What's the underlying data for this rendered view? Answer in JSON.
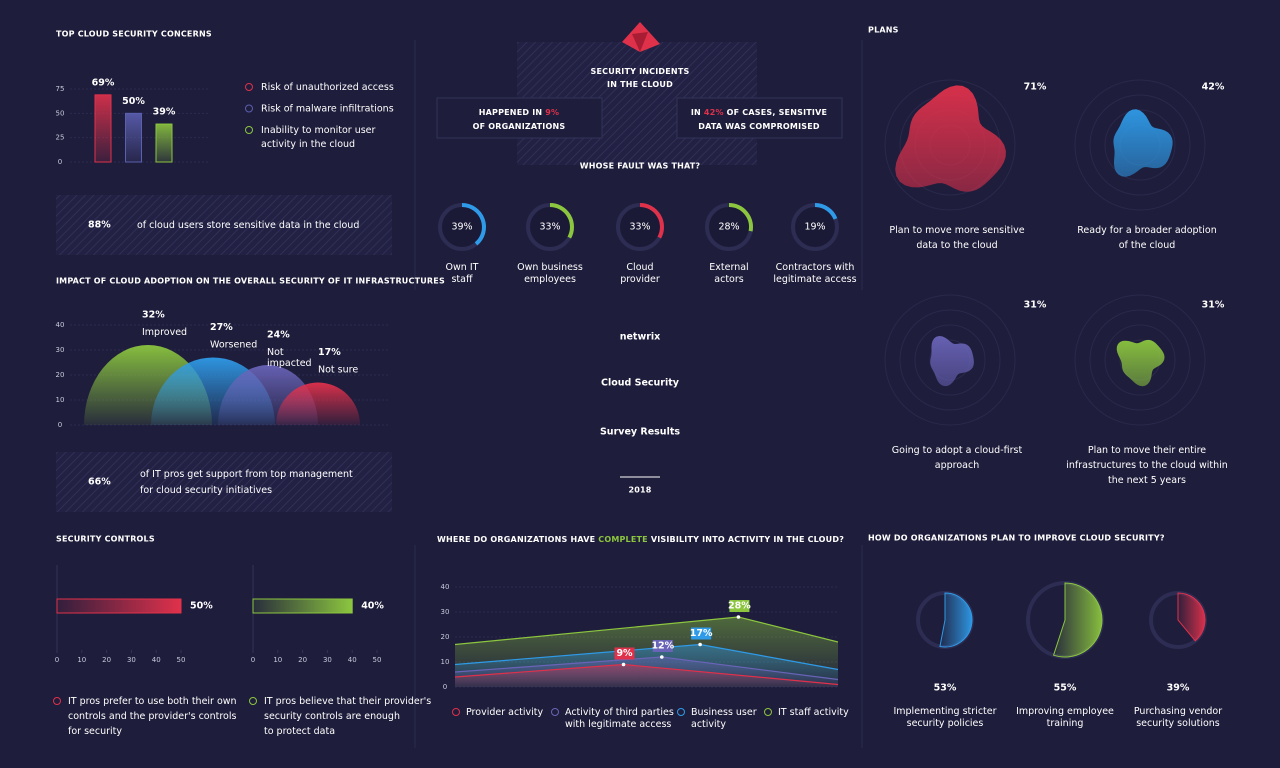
{
  "concerns": {
    "title": "TOP CLOUD SECURITY CONCERNS",
    "ylim": [
      0,
      75
    ],
    "yticks": [
      0,
      25,
      50,
      75
    ],
    "items": [
      {
        "name": [
          "Risk of unauthorized access"
        ],
        "value": 69,
        "value_label": "69%",
        "color": "#e0314b"
      },
      {
        "name": [
          "Risk of malware infiltrations"
        ],
        "value": 50,
        "value_label": "50%",
        "color": "#5b5fb0"
      },
      {
        "name": [
          "Inability to monitor user",
          "activity in the cloud"
        ],
        "value": 39,
        "value_label": "39%",
        "color": "#8cc63f"
      }
    ]
  },
  "cloud_storage": {
    "value_label": "88%",
    "text": [
      "of cloud users store sensitive data in the cloud"
    ],
    "color": "#2f9be8"
  },
  "impact": {
    "title": "IMPACT OF CLOUD ADOPTION ON THE OVERALL SECURITY OF IT INFRASTRUCTURES",
    "ylim": [
      0,
      40
    ],
    "yticks": [
      0,
      10,
      20,
      30,
      40
    ],
    "items": [
      {
        "name": [
          "Improved"
        ],
        "value": 32,
        "value_label": "32%",
        "color": "#8cc63f"
      },
      {
        "name": [
          "Worsened"
        ],
        "value": 27,
        "value_label": "27%",
        "color": "#2f9be8"
      },
      {
        "name": [
          "Not",
          "impacted"
        ],
        "value": 24,
        "value_label": "24%",
        "color": "#6a64b8"
      },
      {
        "name": [
          "Not sure"
        ],
        "value": 17,
        "value_label": "17%",
        "color": "#e0314b"
      }
    ]
  },
  "management": {
    "value_label": "66%",
    "text": [
      "of IT pros get support from top management",
      "for cloud security initiatives"
    ],
    "color": "#8cc63f"
  },
  "controls": {
    "title": "SECURITY CONTROLS",
    "xlim": [
      0,
      50
    ],
    "xticks": [
      0,
      10,
      20,
      30,
      40,
      50
    ],
    "bars": [
      {
        "value": 50,
        "value_label": "50%",
        "color": "#e0314b",
        "text": [
          "IT pros prefer to use both their own",
          "controls and the provider's controls",
          "for security"
        ]
      },
      {
        "value": 40,
        "value_label": "40%",
        "color": "#8cc63f",
        "text": [
          "IT pros believe that their provider's",
          "security controls are enough",
          "to protect data"
        ]
      }
    ]
  },
  "incidents": {
    "title": [
      "SECURITY INCIDENTS",
      "IN THE CLOUD"
    ],
    "highlight_color": "#e0314b",
    "facts": [
      {
        "lines": [
          [
            {
              "text": "HAPPENED IN "
            },
            {
              "text": "9%",
              "highlight": true
            }
          ],
          [
            {
              "text": "OF ORGANIZATIONS"
            }
          ]
        ]
      },
      {
        "lines": [
          [
            {
              "text": "IN "
            },
            {
              "text": "42%",
              "highlight": true
            },
            {
              "text": " OF CASES, SENSITIVE"
            }
          ],
          [
            {
              "text": "DATA WAS COMPROMISED"
            }
          ]
        ]
      }
    ],
    "question": "WHOSE FAULT WAS THAT?",
    "faults": [
      {
        "name": [
          "Own IT",
          "staff"
        ],
        "value": 39,
        "value_label": "39%",
        "color": "#2f9be8"
      },
      {
        "name": [
          "Own business",
          "employees"
        ],
        "value": 33,
        "value_label": "33%",
        "color": "#8cc63f"
      },
      {
        "name": [
          "Cloud",
          "provider"
        ],
        "value": 33,
        "value_label": "33%",
        "color": "#e0314b"
      },
      {
        "name": [
          "External",
          "actors"
        ],
        "value": 28,
        "value_label": "28%",
        "color": "#8cc63f"
      },
      {
        "name": [
          "Contractors with",
          "legitimate access"
        ],
        "value": 19,
        "value_label": "19%",
        "color": "#2f9be8"
      }
    ]
  },
  "hero": {
    "logo": "netwrix",
    "title": "Cloud Security",
    "subtitle": "Survey Results",
    "year": "2018"
  },
  "visibility": {
    "title": [
      {
        "text": "WHERE DO ORGANIZATIONS HAVE "
      },
      {
        "text": "COMPLETE",
        "highlight": true
      },
      {
        "text": " VISIBILITY INTO ACTIVITY IN THE CLOUD?"
      }
    ],
    "highlight_color": "#8cc63f",
    "xlim": [
      0,
      100
    ],
    "ylim": [
      0,
      40
    ],
    "yticks": [
      0,
      10,
      20,
      30,
      40
    ],
    "series": [
      {
        "name": [
          "Provider activity"
        ],
        "color": "#e0314b",
        "x": [
          0,
          44,
          100
        ],
        "values": [
          4,
          9,
          1
        ],
        "value_labels": [
          null,
          "9%",
          null
        ]
      },
      {
        "name": [
          "Activity of third parties",
          "with legitimate access"
        ],
        "color": "#6a64b8",
        "x": [
          0,
          54,
          100
        ],
        "values": [
          6,
          12,
          3
        ],
        "value_labels": [
          null,
          "12%",
          null
        ]
      },
      {
        "name": [
          "Business user",
          "activity"
        ],
        "color": "#2f9be8",
        "x": [
          0,
          64,
          100
        ],
        "values": [
          9,
          17,
          7
        ],
        "value_labels": [
          null,
          "17%",
          null
        ]
      },
      {
        "name": [
          "IT staff activity"
        ],
        "color": "#8cc63f",
        "x": [
          0,
          74,
          100
        ],
        "values": [
          17,
          28,
          18
        ],
        "value_labels": [
          null,
          "28%",
          null
        ]
      }
    ]
  },
  "plans": {
    "title": "PLANS",
    "items": [
      {
        "value": 71,
        "value_label": "71%",
        "color": "#e0314b",
        "text": [
          "Plan to move more sensitive",
          "data to the cloud"
        ]
      },
      {
        "value": 42,
        "value_label": "42%",
        "color": "#2f9be8",
        "text": [
          "Ready for a broader adoption",
          "of the cloud"
        ]
      },
      {
        "value": 31,
        "value_label": "31%",
        "color": "#6a64b8",
        "text": [
          "Going to adopt a cloud-first",
          "approach"
        ]
      },
      {
        "value": 31,
        "value_label": "31%",
        "color": "#8cc63f",
        "text": [
          "Plan to move their entire",
          "infrastructures to the cloud within",
          "the next 5 years"
        ]
      }
    ]
  },
  "improve": {
    "title": "HOW DO ORGANIZATIONS PLAN TO IMPROVE CLOUD SECURITY?",
    "items": [
      {
        "value": 53,
        "value_label": "53%",
        "color": "#2f9be8",
        "text": [
          "Implementing stricter",
          "security policies"
        ]
      },
      {
        "value": 55,
        "value_label": "55%",
        "color": "#8cc63f",
        "text": [
          "Improving employee",
          "training"
        ]
      },
      {
        "value": 39,
        "value_label": "39%",
        "color": "#e0314b",
        "text": [
          "Purchasing vendor",
          "security solutions"
        ]
      }
    ]
  }
}
